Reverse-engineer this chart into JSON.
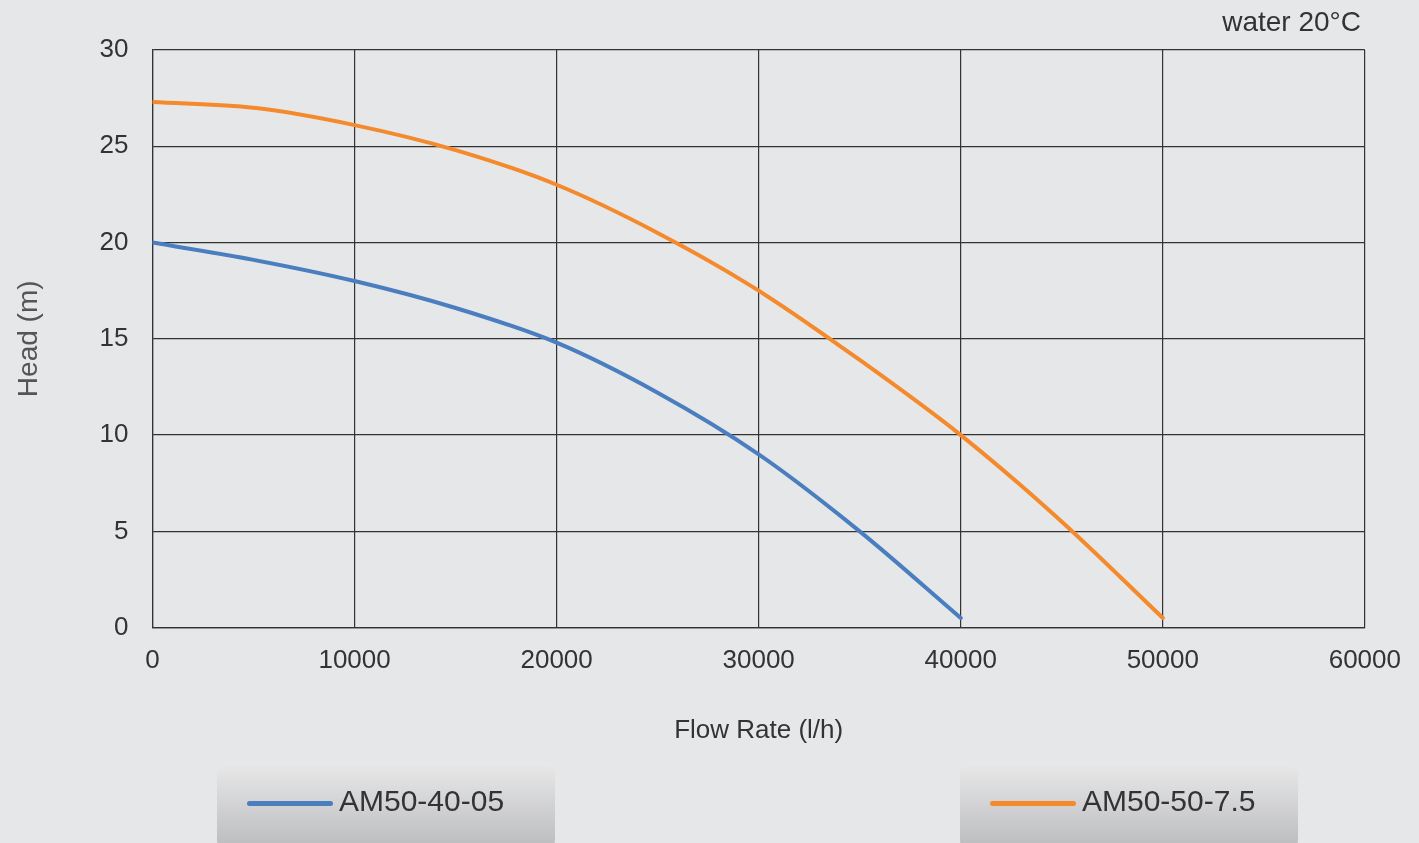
{
  "chart_data": {
    "type": "line",
    "xlabel": "Flow Rate (l/h)",
    "ylabel": "Head (m)",
    "annotations": [
      "water 20°C"
    ],
    "x": [
      0,
      5000,
      10000,
      15000,
      20000,
      25000,
      30000,
      35000,
      40000,
      45000,
      50000
    ],
    "series": [
      {
        "name": "AM50-40-05",
        "color": "#4a7ebf",
        "values": [
          20,
          19.1,
          18,
          16.6,
          14.8,
          12.2,
          9,
          5,
          0.5,
          null,
          null
        ]
      },
      {
        "name": "AM50-50-7.5",
        "color": "#f48a2c",
        "values": [
          27.3,
          27,
          26.1,
          24.8,
          23,
          20.5,
          17.5,
          13.9,
          10,
          5.5,
          0.5
        ]
      }
    ],
    "xlim": [
      0,
      60000
    ],
    "xticks": [
      0,
      10000,
      20000,
      30000,
      40000,
      50000,
      60000
    ],
    "ylim": [
      0,
      30
    ],
    "yticks": [
      0,
      5,
      10,
      15,
      20,
      25,
      30
    ],
    "grid": true,
    "legend": "bottom",
    "marker": "none",
    "line_style": "solid"
  }
}
